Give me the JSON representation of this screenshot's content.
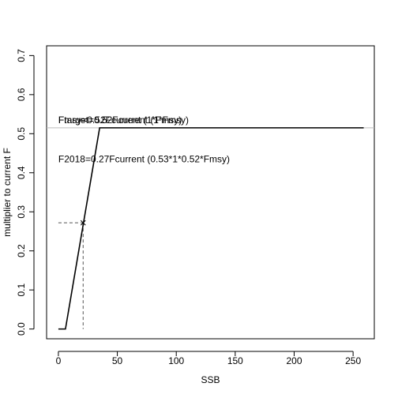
{
  "chart_data": {
    "type": "line",
    "title": "",
    "xlabel": "SSB",
    "ylabel": "multiplier to current F",
    "xlim": [
      -10,
      268
    ],
    "ylim": [
      -0.025,
      0.725
    ],
    "xticks": [
      0,
      50,
      100,
      150,
      200,
      250
    ],
    "yticks": [
      0.0,
      0.1,
      0.2,
      0.3,
      0.4,
      0.5,
      0.6,
      0.7
    ],
    "xtick_labels": [
      "0",
      "50",
      "100",
      "150",
      "200",
      "250"
    ],
    "ytick_labels": [
      "0.0",
      "0.1",
      "0.2",
      "0.3",
      "0.4",
      "0.5",
      "0.6",
      "0.7"
    ],
    "grid": false,
    "series": [
      {
        "values_x": [
          0,
          6,
          35,
          259
        ],
        "values_y": [
          0,
          0,
          0.515,
          0.515
        ],
        "color": "#000000",
        "style": "solid"
      }
    ],
    "hline": {
      "y": 0.515,
      "color": "#bdbdbd"
    },
    "guide": {
      "x": 21,
      "y": 0.272,
      "color": "#555555",
      "style": "dashed"
    },
    "point": {
      "x": 21,
      "y": 0.272,
      "marker": "x"
    },
    "annotations": [
      {
        "text": "Fmsy=0.52Fcurrent (1*Fmsy)",
        "x": 0,
        "y": 0.535
      },
      {
        "text": "Ftarget=0.52Fcurrent (1*Fmsy)",
        "x": 0,
        "y": 0.535
      },
      {
        "text": "F2018=0.27Fcurrent (0.53*1*0.52*Fmsy)",
        "x": 0,
        "y": 0.435
      }
    ]
  }
}
